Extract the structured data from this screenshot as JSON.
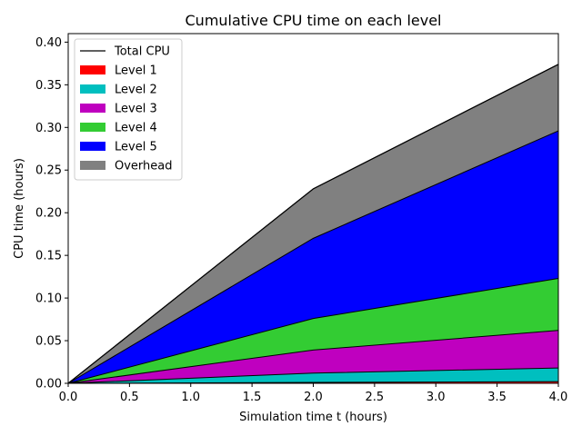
{
  "chart_data": {
    "type": "area",
    "stacked": true,
    "title": "Cumulative CPU time on each level",
    "xlabel": "Simulation time t (hours)",
    "ylabel": "CPU time (hours)",
    "xlim": [
      0.0,
      4.0
    ],
    "ylim": [
      0.0,
      0.41
    ],
    "xticks": [
      "0.0",
      "0.5",
      "1.0",
      "1.5",
      "2.0",
      "2.5",
      "3.0",
      "3.5",
      "4.0"
    ],
    "yticks": [
      "0.00",
      "0.05",
      "0.10",
      "0.15",
      "0.20",
      "0.25",
      "0.30",
      "0.35",
      "0.40"
    ],
    "x": [
      0.0,
      2.0,
      4.0
    ],
    "series": [
      {
        "name": "Level 1",
        "color": "#ff0000",
        "values": [
          0.0,
          0.001,
          0.002
        ]
      },
      {
        "name": "Level 2",
        "color": "#00bfbf",
        "values": [
          0.0,
          0.011,
          0.016
        ]
      },
      {
        "name": "Level 3",
        "color": "#bf00bf",
        "values": [
          0.0,
          0.027,
          0.044
        ]
      },
      {
        "name": "Level 4",
        "color": "#33cc33",
        "values": [
          0.0,
          0.037,
          0.061
        ]
      },
      {
        "name": "Level 5",
        "color": "#0000ff",
        "values": [
          0.0,
          0.094,
          0.173
        ]
      },
      {
        "name": "Overhead",
        "color": "#808080",
        "values": [
          0.0,
          0.058,
          0.078
        ]
      }
    ],
    "total_line": {
      "name": "Total CPU",
      "color": "#000000",
      "values": [
        0.0,
        0.228,
        0.374
      ]
    },
    "grid": false,
    "legend_position": "top-left"
  }
}
